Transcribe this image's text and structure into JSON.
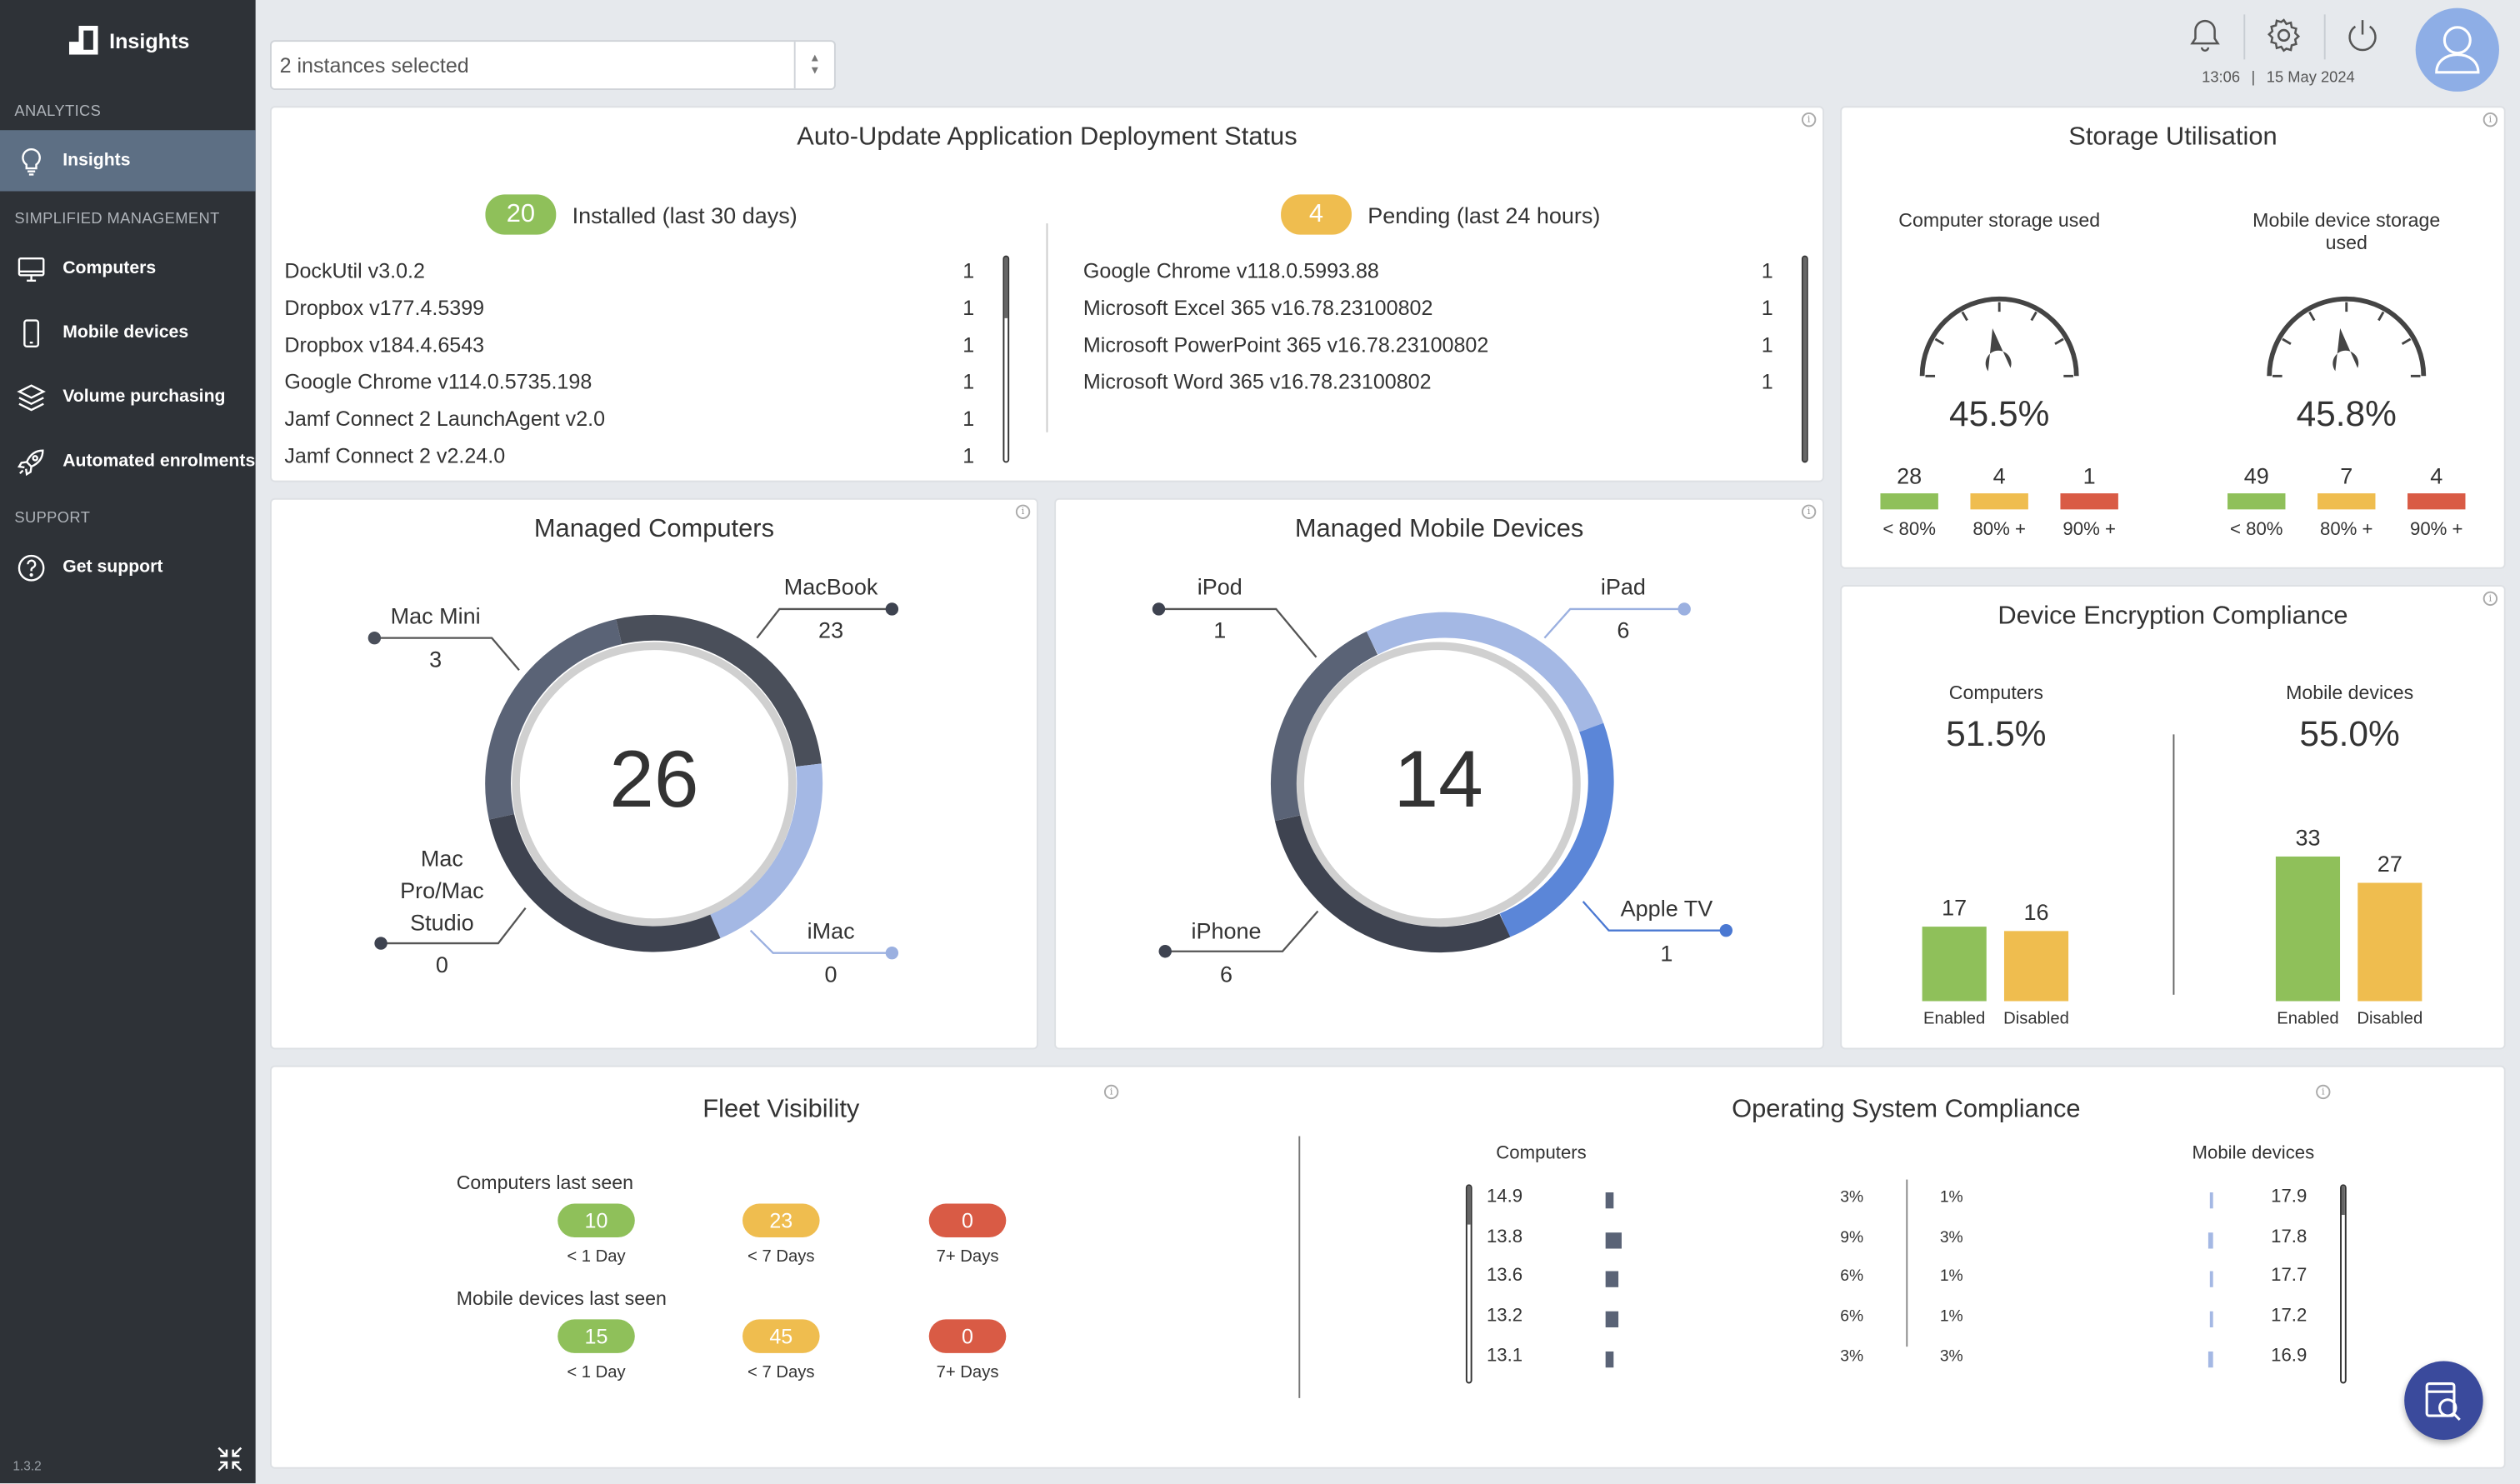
{
  "sidebar": {
    "brand": "Insights",
    "sections": [
      "ANALYTICS",
      "SIMPLIFIED MANAGEMENT",
      "SUPPORT"
    ],
    "items": [
      {
        "label": "Insights",
        "icon": "lightbulb-icon",
        "active": true
      },
      {
        "label": "Computers",
        "icon": "monitor-icon"
      },
      {
        "label": "Mobile devices",
        "icon": "phone-icon"
      },
      {
        "label": "Volume purchasing",
        "icon": "layers-icon"
      },
      {
        "label": "Automated enrolments",
        "icon": "rocket-icon"
      },
      {
        "label": "Get support",
        "icon": "help-icon"
      }
    ],
    "version": "1.3.2"
  },
  "toolbar": {
    "instances_select": "2 instances selected",
    "time": "13:06",
    "date": "15 May 2024"
  },
  "auto_update": {
    "title": "Auto-Update Application Deployment Status",
    "installed": {
      "count": "20",
      "label": "Installed (last 30 days)"
    },
    "pending": {
      "count": "4",
      "label": "Pending (last 24 hours)"
    },
    "installed_apps": [
      {
        "name": "DockUtil v3.0.2",
        "count": "1"
      },
      {
        "name": "Dropbox v177.4.5399",
        "count": "1"
      },
      {
        "name": "Dropbox v184.4.6543",
        "count": "1"
      },
      {
        "name": "Google Chrome v114.0.5735.198",
        "count": "1"
      },
      {
        "name": "Jamf Connect 2 LaunchAgent v2.0",
        "count": "1"
      },
      {
        "name": "Jamf Connect 2 v2.24.0",
        "count": "1"
      }
    ],
    "pending_apps": [
      {
        "name": "Google Chrome v118.0.5993.88",
        "count": "1"
      },
      {
        "name": "Microsoft Excel 365 v16.78.23100802",
        "count": "1"
      },
      {
        "name": "Microsoft PowerPoint 365 v16.78.23100802",
        "count": "1"
      },
      {
        "name": "Microsoft Word 365 v16.78.23100802",
        "count": "1"
      }
    ]
  },
  "storage": {
    "title": "Storage Utilisation",
    "computer": {
      "label": "Computer storage used",
      "value": "45.5%",
      "level": 45.5,
      "buckets": [
        {
          "count": "28",
          "label": "< 80%"
        },
        {
          "count": "4",
          "label": "80% +"
        },
        {
          "count": "1",
          "label": "90% +"
        }
      ]
    },
    "mobile": {
      "label": "Mobile device storage used",
      "value": "45.8%",
      "level": 45.8,
      "buckets": [
        {
          "count": "49",
          "label": "< 80%"
        },
        {
          "count": "7",
          "label": "80% +"
        },
        {
          "count": "4",
          "label": "90% +"
        }
      ]
    }
  },
  "managed_computers": {
    "title": "Managed Computers",
    "total": "26",
    "segments": [
      {
        "name": "Mac Mini",
        "value": "3"
      },
      {
        "name": "MacBook",
        "value": "23"
      },
      {
        "name": "iMac",
        "value": "0"
      },
      {
        "name_lines": [
          "Mac",
          "Pro/Mac",
          "Studio"
        ],
        "value": "0"
      }
    ]
  },
  "managed_mobile": {
    "title": "Managed Mobile Devices",
    "total": "14",
    "segments": [
      {
        "name": "iPod",
        "value": "1"
      },
      {
        "name": "iPad",
        "value": "6"
      },
      {
        "name": "Apple TV",
        "value": "1"
      },
      {
        "name": "iPhone",
        "value": "6"
      }
    ]
  },
  "encryption": {
    "title": "Device Encryption Compliance",
    "computers": {
      "label": "Computers",
      "value": "51.5%",
      "enabled": 17,
      "disabled": 16
    },
    "mobile": {
      "label": "Mobile devices",
      "value": "55.0%",
      "enabled": 33,
      "disabled": 27
    },
    "enabled_label": "Enabled",
    "disabled_label": "Disabled"
  },
  "fleet": {
    "title": "Fleet Visibility",
    "computers_label": "Computers last seen",
    "mobile_label": "Mobile devices last seen",
    "computers": [
      {
        "count": "10",
        "label": "< 1 Day"
      },
      {
        "count": "23",
        "label": "< 7 Days"
      },
      {
        "count": "0",
        "label": "7+ Days"
      }
    ],
    "mobile": [
      {
        "count": "15",
        "label": "< 1 Day"
      },
      {
        "count": "45",
        "label": "< 7 Days"
      },
      {
        "count": "0",
        "label": "7+ Days"
      }
    ]
  },
  "os_compliance": {
    "title": "Operating System Compliance",
    "computers_label": "Computers",
    "mobile_label": "Mobile devices",
    "computers": [
      {
        "version": "14.9",
        "pct": "3%",
        "share": 3
      },
      {
        "version": "13.8",
        "pct": "9%",
        "share": 9
      },
      {
        "version": "13.6",
        "pct": "6%",
        "share": 6
      },
      {
        "version": "13.2",
        "pct": "6%",
        "share": 6
      },
      {
        "version": "13.1",
        "pct": "3%",
        "share": 3
      }
    ],
    "mobile": [
      {
        "version": "17.9",
        "pct": "1%",
        "share": 1
      },
      {
        "version": "17.8",
        "pct": "3%",
        "share": 3
      },
      {
        "version": "17.7",
        "pct": "1%",
        "share": 1
      },
      {
        "version": "17.2",
        "pct": "1%",
        "share": 1
      },
      {
        "version": "16.9",
        "pct": "3%",
        "share": 3
      }
    ]
  },
  "colors": {
    "green": "#8fc05a",
    "yellow": "#efbd4f",
    "red": "#d95b45",
    "navy": "#3a4a9c"
  }
}
